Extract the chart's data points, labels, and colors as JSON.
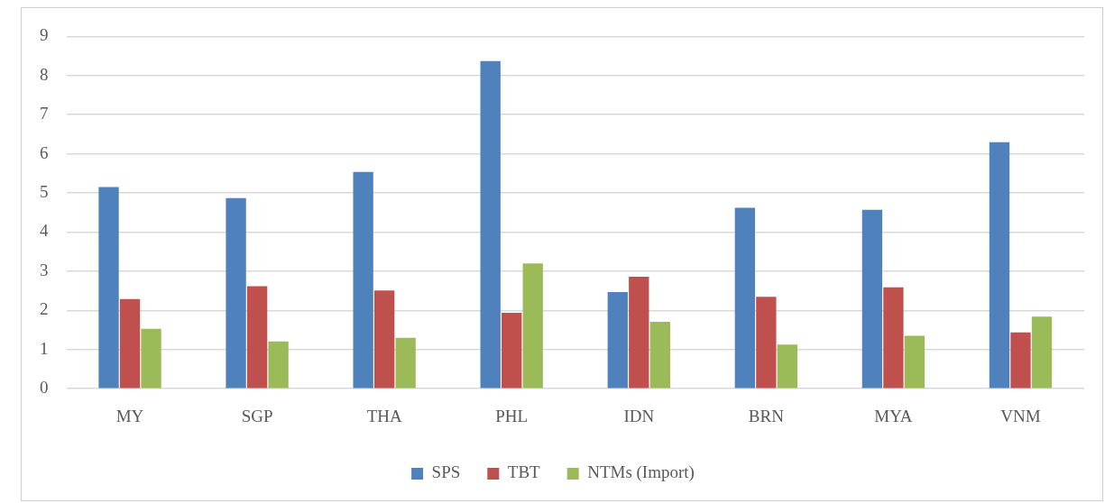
{
  "chart_data": {
    "type": "bar",
    "categories": [
      "MY",
      "SGP",
      "THA",
      "PHL",
      "IDN",
      "BRN",
      "MYA",
      "VNM"
    ],
    "series": [
      {
        "name": "SPS",
        "color": "#4f81bd",
        "values": [
          5.15,
          4.87,
          5.54,
          8.37,
          2.47,
          4.62,
          4.57,
          6.3
        ]
      },
      {
        "name": "TBT",
        "color": "#c0504d",
        "values": [
          2.29,
          2.62,
          2.51,
          1.94,
          2.86,
          2.35,
          2.59,
          1.44
        ]
      },
      {
        "name": "NTMs (Import)",
        "color": "#9bbb59",
        "values": [
          1.53,
          1.21,
          1.3,
          3.2,
          1.71,
          1.13,
          1.35,
          1.84
        ]
      }
    ],
    "ylim": [
      0,
      9
    ],
    "yticks": [
      0,
      1,
      2,
      3,
      4,
      5,
      6,
      7,
      8,
      9
    ],
    "grid": "y",
    "legend": "bottom"
  }
}
